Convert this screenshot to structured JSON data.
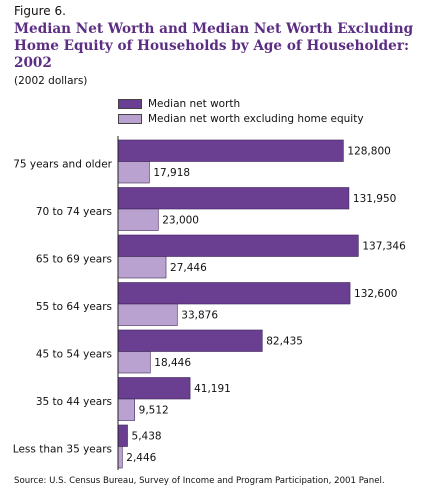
{
  "figure_label": "Figure 6.",
  "source": "Source: U.S. Census Bureau, Survey of Income and Program Participation, 2001 Panel.",
  "colors": {
    "title": "#5b2d83",
    "net_worth": "#6a3f91",
    "net_worth_excl_home_equity": "#b9a2cf"
  },
  "chart_data": {
    "type": "bar",
    "orientation": "horizontal",
    "title": "Median Net Worth and Median Net Worth Excluding Home Equity of Households by Age of Householder: 2002",
    "subtitle": "(2002 dollars)",
    "categories": [
      "75 years and older",
      "70 to 74 years",
      "65 to 69 years",
      "55 to 64 years",
      "45 to 54 years",
      "35 to 44 years",
      "Less than 35 years"
    ],
    "series": [
      {
        "name": "Median net worth",
        "values": [
          128800,
          131950,
          137346,
          132600,
          82435,
          41191,
          5438
        ],
        "labels": [
          "128,800",
          "131,950",
          "137,346",
          "132,600",
          "82,435",
          "41,191",
          "5,438"
        ]
      },
      {
        "name": "Median net worth excluding home equity",
        "values": [
          17918,
          23000,
          27446,
          33876,
          18446,
          9512,
          2446
        ],
        "labels": [
          "17,918",
          "23,000",
          "27,446",
          "33,876",
          "18,446",
          "9,512",
          "2,446"
        ]
      }
    ],
    "xlim": [
      0,
      140000
    ],
    "grid": false,
    "legend_position": "top"
  }
}
